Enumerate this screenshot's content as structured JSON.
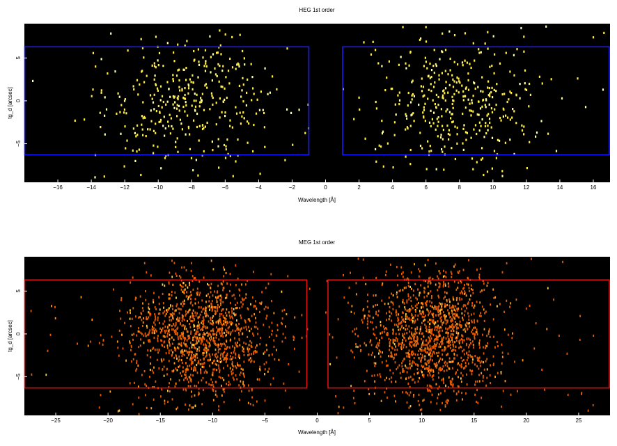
{
  "chart_data": [
    {
      "type": "heatmap",
      "title": "HEG 1st order",
      "xlabel": "Wavelength [Å]",
      "ylabel": "tg_d [arcsec]",
      "xlim": [
        -18,
        17
      ],
      "ylim": [
        -9.5,
        9.0
      ],
      "xticks": [
        -16,
        -14,
        -12,
        -10,
        -8,
        -6,
        -4,
        -2,
        0,
        2,
        4,
        6,
        8,
        10,
        12,
        14,
        16
      ],
      "xtick_labels": [
        "−16",
        "−14",
        "−12",
        "−10",
        "−8",
        "−6",
        "−4",
        "−2",
        "0",
        "2",
        "4",
        "6",
        "8",
        "10",
        "12",
        "14",
        "16"
      ],
      "yticks": [
        -5,
        0,
        5
      ],
      "ytick_labels": [
        "−5",
        "0",
        "5"
      ],
      "background": "#000000",
      "count_colors": [
        "#ffee44",
        "#ffffaa"
      ],
      "regions": [
        {
          "x0": -18,
          "x1": -1,
          "y0": -6.3,
          "y1": 6.3,
          "color": "#1a1aff"
        },
        {
          "x0": 1,
          "x1": 17,
          "y0": -6.3,
          "y1": 6.3,
          "color": "#1a1aff"
        }
      ],
      "events": [
        {
          "center": -8.0,
          "sigma": 2.5,
          "count": 360,
          "ysigma": 4.2
        },
        {
          "center": 7.7,
          "sigma": 2.6,
          "count": 380,
          "ysigma": 4.2
        }
      ],
      "background_events": {
        "count": 30
      },
      "grid": false
    },
    {
      "type": "heatmap",
      "title": "MEG 1st order",
      "xlabel": "Wavelength [Å]",
      "ylabel": "tg_d [arcsec]",
      "xlim": [
        -28,
        28
      ],
      "ylim": [
        -9.5,
        9.0
      ],
      "xticks": [
        -25,
        -20,
        -15,
        -10,
        -5,
        0,
        5,
        10,
        15,
        20,
        25
      ],
      "xtick_labels": [
        "−25",
        "−20",
        "−15",
        "−10",
        "−5",
        "0",
        "5",
        "10",
        "15",
        "20",
        "25"
      ],
      "yticks": [
        -5,
        0,
        5
      ],
      "ytick_labels": [
        "−5",
        "0",
        "5"
      ],
      "background": "#000000",
      "count_colors": [
        "#e85a00",
        "#ff9a1a",
        "#ffd24a"
      ],
      "regions": [
        {
          "x0": -28,
          "x1": -1,
          "y0": -6.3,
          "y1": 6.3,
          "color": "#dd1111"
        },
        {
          "x0": 1,
          "x1": 28,
          "y0": -6.3,
          "y1": 6.3,
          "color": "#dd1111"
        }
      ],
      "events": [
        {
          "center": -11.0,
          "sigma": 3.3,
          "count": 1300,
          "ysigma": 3.8
        },
        {
          "center": 10.8,
          "sigma": 3.3,
          "count": 1300,
          "ysigma": 3.8
        }
      ],
      "background_events": {
        "count": 110
      },
      "grid": false
    }
  ]
}
